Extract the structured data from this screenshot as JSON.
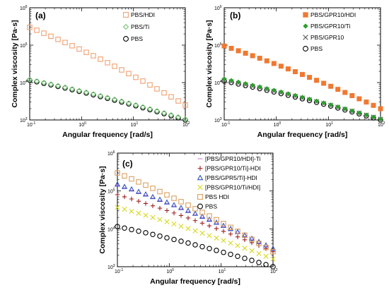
{
  "chart_data": [
    {
      "type": "scatter",
      "panel_label": "(a)",
      "xlabel": "Angular frequency [rad/s]",
      "ylabel": "Complex viscosity [Pa·s]",
      "x_scale": "log",
      "y_scale": "log",
      "xlim": [
        0.1,
        100
      ],
      "ylim": [
        1000,
        1000000
      ],
      "x_ticks": [
        0.1,
        1,
        10,
        100
      ],
      "x_tick_labels": [
        "10",
        "10",
        "10",
        "10"
      ],
      "x_tick_exponents": [
        "-1",
        "0",
        "1",
        "2"
      ],
      "y_ticks": [
        1000,
        10000,
        100000,
        1000000
      ],
      "y_tick_labels": [
        "10",
        "10",
        "10",
        "10"
      ],
      "y_tick_exponents": [
        "3",
        "4",
        "5",
        "6"
      ],
      "legend_position": "top-right",
      "series": [
        {
          "name": "PBS/HDI",
          "color": "#f0a070",
          "marker": "square-open",
          "start": 300000,
          "end": 2500
        },
        {
          "name": "PBS/Ti",
          "color": "#6cc86c",
          "marker": "diamond-open",
          "start": 12000,
          "end": 1050
        },
        {
          "name": "PBS",
          "color": "#000000",
          "marker": "circle-open",
          "start": 11500,
          "end": 1000
        }
      ]
    },
    {
      "type": "scatter",
      "panel_label": "(b)",
      "xlabel": "Angular frequency [rad/s]",
      "ylabel": "Complex viscosity [Pa·s]",
      "x_scale": "log",
      "y_scale": "log",
      "xlim": [
        0.1,
        100
      ],
      "ylim": [
        1000,
        1000000
      ],
      "x_ticks": [
        0.1,
        1,
        10,
        100
      ],
      "x_tick_labels": [
        "10",
        "10",
        "10",
        "10"
      ],
      "x_tick_exponents": [
        "-1",
        "0",
        "1",
        "2"
      ],
      "y_ticks": [
        1000,
        10000,
        100000,
        1000000
      ],
      "y_tick_labels": [
        "10",
        "10",
        "10",
        "10"
      ],
      "y_tick_exponents": [
        "3",
        "4",
        "5",
        "6"
      ],
      "legend_position": "top-right",
      "series": [
        {
          "name": "PBS/GPR10/HDI",
          "color": "#f07830",
          "marker": "square-filled",
          "start": 95000,
          "end": 2000
        },
        {
          "name": "PBS/GPR10/Ti",
          "color": "#2ca02c",
          "marker": "diamond-filled",
          "start": 12500,
          "end": 1050
        },
        {
          "name": "PBS/GPR10",
          "color": "#555555",
          "marker": "cross",
          "start": 11500,
          "end": 1050
        },
        {
          "name": "PBS",
          "color": "#000000",
          "marker": "circle-open",
          "start": 11000,
          "end": 1000
        }
      ]
    },
    {
      "type": "scatter",
      "panel_label": "(c)",
      "xlabel": "Angular frequency [rad/s]",
      "ylabel": "Complex viscosity [Pa·s]",
      "x_scale": "log",
      "y_scale": "log",
      "xlim": [
        0.1,
        100
      ],
      "ylim": [
        1000,
        1000000
      ],
      "x_ticks": [
        0.1,
        1,
        10,
        100
      ],
      "x_tick_labels": [
        "10",
        "10",
        "10",
        "10"
      ],
      "x_tick_exponents": [
        "-1",
        "0",
        "1",
        "2"
      ],
      "y_ticks": [
        1000,
        10000,
        100000,
        1000000
      ],
      "y_tick_labels": [
        "10",
        "10",
        "10",
        "10"
      ],
      "y_tick_exponents": [
        "3",
        "4",
        "5",
        "6"
      ],
      "legend_position": "top-right",
      "series": [
        {
          "name": "[PBS/GPR10/HDI]-Ti",
          "color": "#d07ad8",
          "marker": "dash",
          "start": 140000,
          "end": 2800
        },
        {
          "name": "[PBS/GPR10/Ti]-HDI",
          "color": "#a02020",
          "marker": "plus",
          "start": 80000,
          "end": 2500
        },
        {
          "name": "[PBS/GPR5/Ti]-HDI",
          "color": "#3050c0",
          "marker": "triangle-open",
          "start": 150000,
          "end": 3000
        },
        {
          "name": "[PBS/GPR10/Ti/HDI]",
          "color": "#d8d820",
          "marker": "cross",
          "start": 37000,
          "end": 1600
        },
        {
          "name": "PBS HDI",
          "color": "#d8a060",
          "marker": "square-open",
          "start": 300000,
          "end": 2500
        },
        {
          "name": "PBS",
          "color": "#000000",
          "marker": "circle-open",
          "start": 11500,
          "end": 1000
        }
      ]
    }
  ]
}
